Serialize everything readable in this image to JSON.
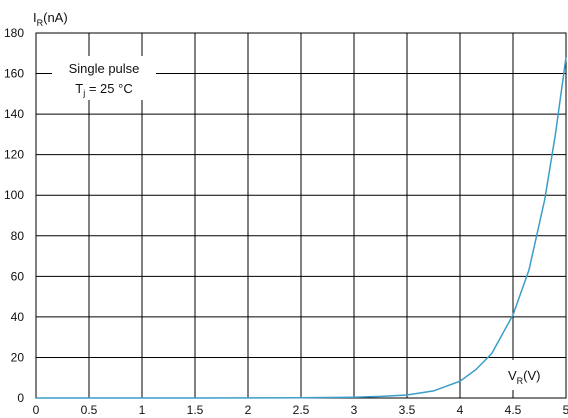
{
  "chart_data": {
    "type": "line",
    "title": "",
    "xlabel": {
      "main": "V",
      "sub": "R",
      "unit": "(V)"
    },
    "ylabel": {
      "main": "I",
      "sub": "R",
      "unit": "(nA)"
    },
    "xlim": [
      0,
      5
    ],
    "ylim": [
      0,
      180
    ],
    "xticks": [
      "0",
      "0.5",
      "1",
      "1.5",
      "2",
      "2.5",
      "3",
      "3.5",
      "4",
      "4.5",
      "5"
    ],
    "yticks": [
      "0",
      "20",
      "40",
      "60",
      "80",
      "100",
      "120",
      "140",
      "160",
      "180"
    ],
    "grid": true,
    "annotation": {
      "line1": "Single pulse",
      "line2_main": "T",
      "line2_sub": "j",
      "line2_rest": " = 25 °C"
    },
    "series": [
      {
        "color": "#3a9ec8",
        "x": [
          0,
          0.5,
          1,
          1.5,
          2,
          2.5,
          3,
          3.25,
          3.5,
          3.75,
          4,
          4.15,
          4.3,
          4.5,
          4.65,
          4.8,
          4.9,
          5.0
        ],
        "y": [
          0,
          0,
          0,
          0,
          0.05,
          0.15,
          0.4,
          0.8,
          1.5,
          3.5,
          8.3,
          14,
          22,
          41,
          63,
          98,
          130,
          168
        ]
      }
    ]
  }
}
